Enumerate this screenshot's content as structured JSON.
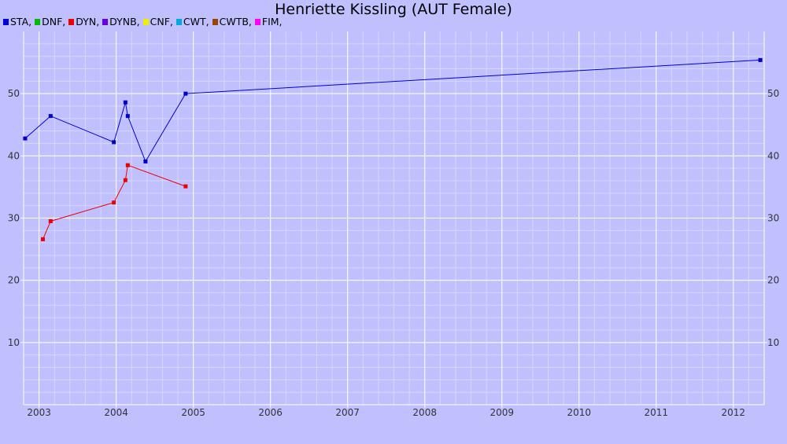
{
  "chart_data": {
    "type": "line",
    "title": "Henriette Kissling (AUT Female)",
    "legend": [
      "STA",
      "DNF",
      "DYN",
      "DYNB",
      "CNF",
      "CWT",
      "CWTB",
      "FIM"
    ],
    "legend_colors": [
      "#0000dd",
      "#00bb00",
      "#ee0000",
      "#6600dd",
      "#eeee00",
      "#00aadd",
      "#994400",
      "#ff00ff"
    ],
    "legend_placement": "top-left",
    "x_ticks": [
      "2003",
      "2004",
      "2005",
      "2006",
      "2007",
      "2008",
      "2009",
      "2010",
      "2011",
      "2012"
    ],
    "y_ticks": [
      "10",
      "20",
      "30",
      "40",
      "50"
    ],
    "xlim": [
      2002.8,
      2012.4
    ],
    "ylim": [
      0,
      60
    ],
    "grid": true,
    "series": [
      {
        "name": "STA",
        "color": "#0000cc",
        "points": [
          [
            2002.82,
            42.8
          ],
          [
            2003.15,
            46.4
          ],
          [
            2003.97,
            42.2
          ],
          [
            2004.12,
            48.6
          ],
          [
            2004.15,
            46.4
          ],
          [
            2004.38,
            39.1
          ],
          [
            2004.9,
            50.0
          ],
          [
            2012.35,
            55.4
          ]
        ]
      },
      {
        "name": "DYN",
        "color": "#ee0000",
        "points": [
          [
            2003.05,
            26.6
          ],
          [
            2003.15,
            29.5
          ],
          [
            2003.97,
            32.5
          ],
          [
            2004.12,
            36.1
          ],
          [
            2004.15,
            38.5
          ],
          [
            2004.9,
            35.1
          ]
        ]
      }
    ]
  }
}
